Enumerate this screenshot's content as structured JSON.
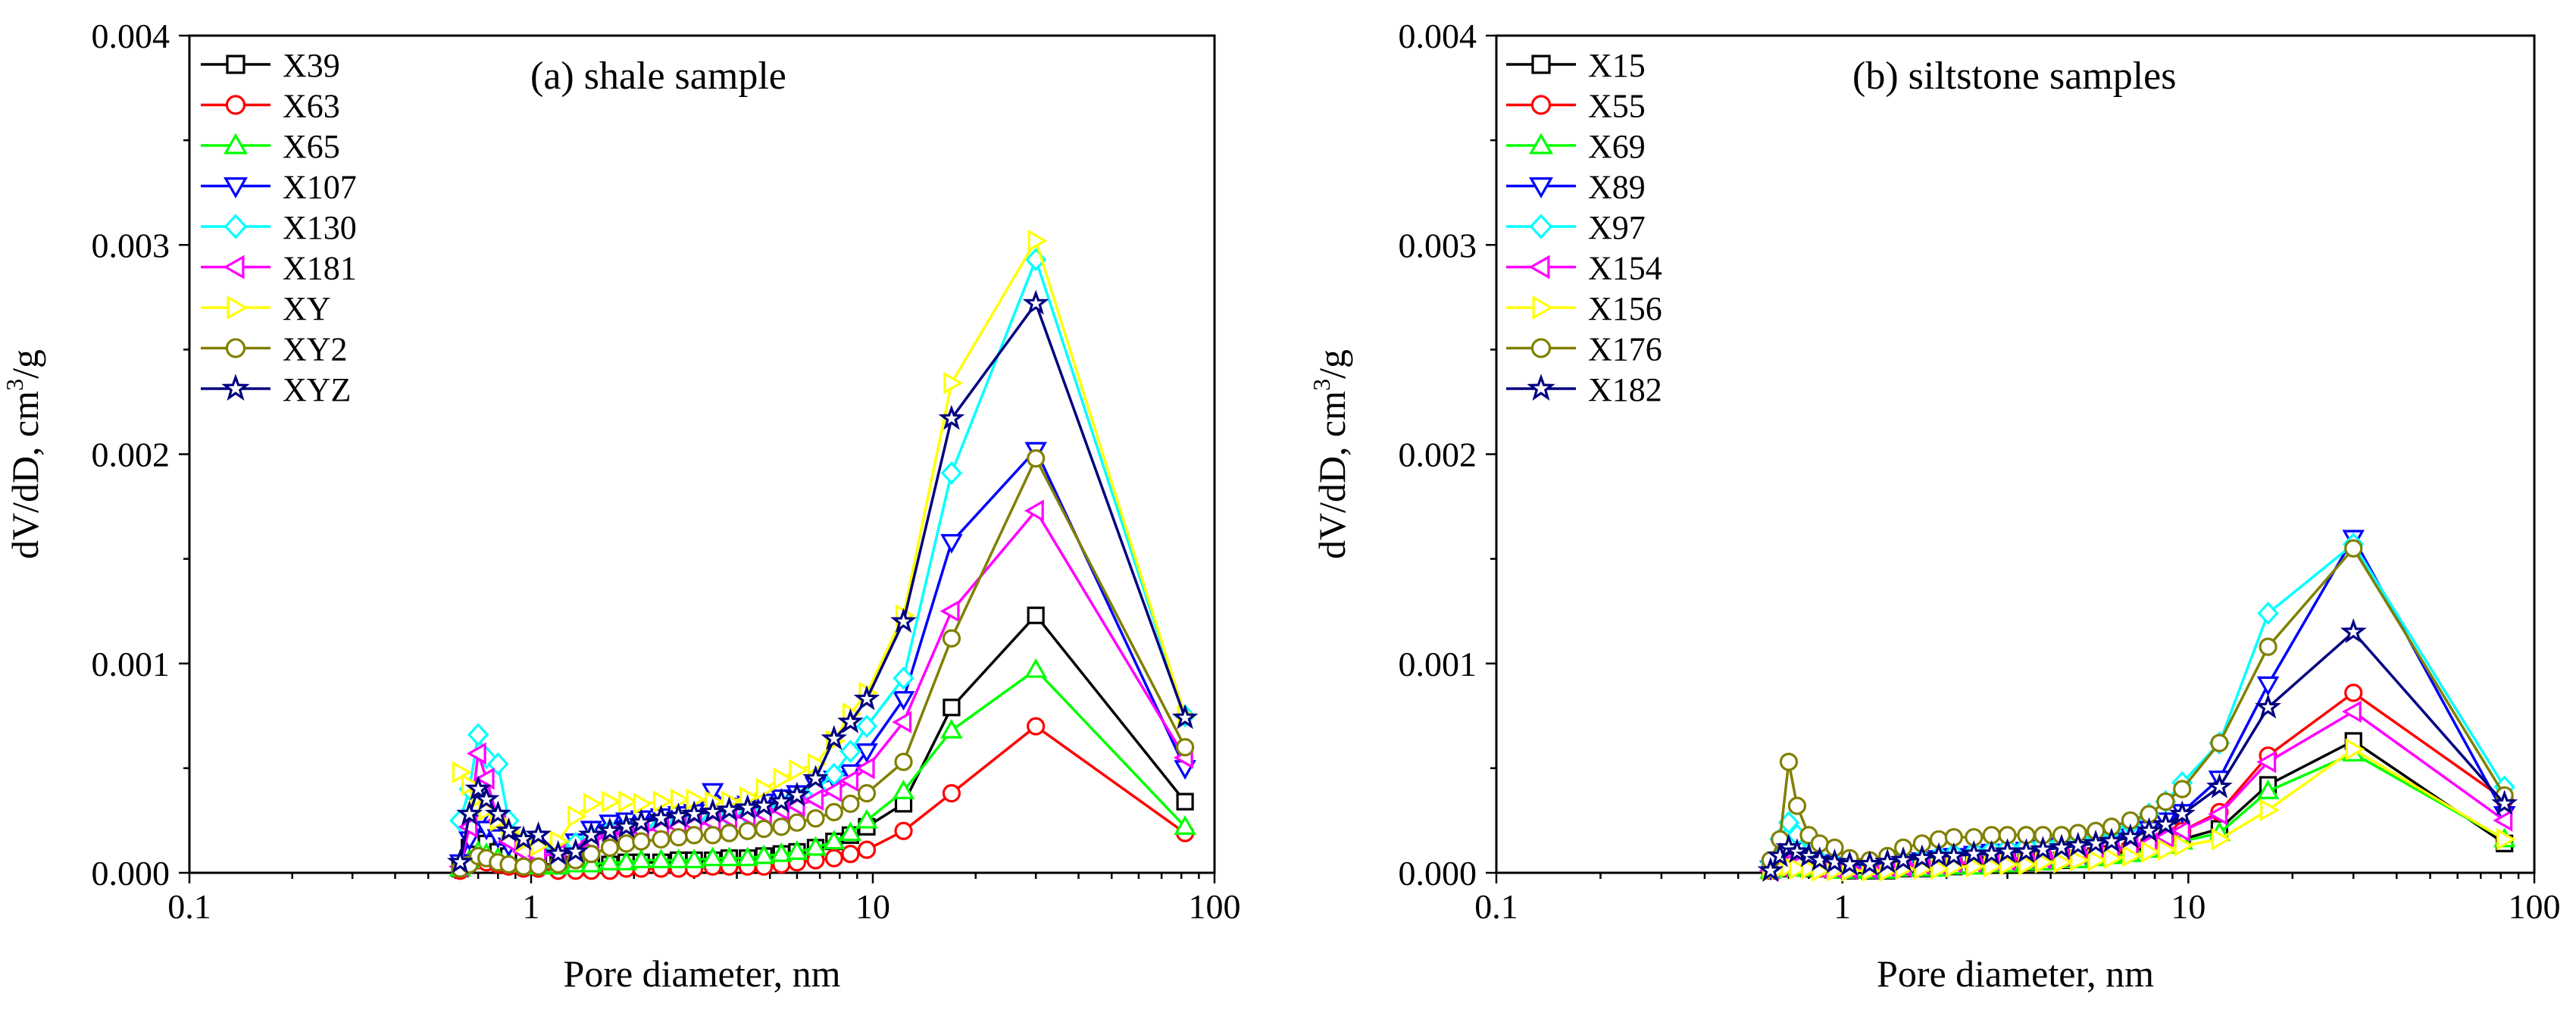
{
  "chart_data": [
    {
      "type": "line",
      "panel": "a",
      "title": "(a) shale sample",
      "xlabel": "Pore diameter, nm",
      "ylabel_main": "dV/dD, cm",
      "ylabel_sup": "3",
      "ylabel_end": "/g",
      "xscale": "log",
      "xlim": [
        0.1,
        100
      ],
      "ylim": [
        0,
        0.004
      ],
      "x_ticks": [
        0.1,
        1,
        10,
        100
      ],
      "x_tick_labels": [
        "0.1",
        "1",
        "10",
        "100"
      ],
      "y_ticks": [
        0,
        0.001,
        0.002,
        0.003,
        0.004
      ],
      "y_tick_labels": [
        "0.000",
        "0.001",
        "0.002",
        "0.003",
        "0.004"
      ],
      "legend_position": "top-left",
      "x": [
        0.62,
        0.66,
        0.7,
        0.74,
        0.8,
        0.86,
        0.95,
        1.05,
        1.2,
        1.35,
        1.5,
        1.7,
        1.9,
        2.1,
        2.4,
        2.7,
        3.0,
        3.4,
        3.8,
        4.3,
        4.8,
        5.4,
        6.0,
        6.8,
        7.7,
        8.6,
        9.6,
        12.3,
        17.0,
        30.0,
        82.0
      ],
      "series": [
        {
          "name": "X39",
          "color": "#000000",
          "marker": "square",
          "values": [
            2e-05,
            0.00012,
            0.00016,
            0.00014,
            0.0001,
            8e-05,
            6e-05,
            4e-05,
            4e-05,
            4e-05,
            4e-05,
            4e-05,
            5e-05,
            5e-05,
            5e-05,
            6e-05,
            6e-05,
            6e-05,
            7e-05,
            7e-05,
            8e-05,
            9e-05,
            0.0001,
            0.00012,
            0.00015,
            0.00018,
            0.00022,
            0.00033,
            0.00079,
            0.00123,
            0.00034
          ]
        },
        {
          "name": "X63",
          "color": "#ff0000",
          "marker": "circle",
          "values": [
            1e-05,
            4e-05,
            6e-05,
            5e-05,
            4e-05,
            3e-05,
            2e-05,
            2e-05,
            1e-05,
            1e-05,
            1e-05,
            1e-05,
            2e-05,
            2e-05,
            2e-05,
            2e-05,
            2e-05,
            3e-05,
            3e-05,
            3e-05,
            3e-05,
            4e-05,
            5e-05,
            6e-05,
            7e-05,
            9e-05,
            0.00011,
            0.0002,
            0.00038,
            0.0007,
            0.00019
          ]
        },
        {
          "name": "X65",
          "color": "#00ff00",
          "marker": "triangle-up",
          "values": [
            2e-05,
            6e-05,
            0.0001,
            9e-05,
            7e-05,
            5e-05,
            4e-05,
            3e-05,
            3e-05,
            4e-05,
            4e-05,
            5e-05,
            5e-05,
            6e-05,
            6e-05,
            6e-05,
            6e-05,
            7e-05,
            7e-05,
            7e-05,
            8e-05,
            9e-05,
            0.0001,
            0.00012,
            0.00015,
            0.00019,
            0.00025,
            0.00039,
            0.00068,
            0.00097,
            0.00022
          ]
        },
        {
          "name": "X107",
          "color": "#0000ff",
          "marker": "triangle-down",
          "values": [
            5e-05,
            0.00016,
            0.00024,
            0.00021,
            0.00017,
            0.00013,
            0.00011,
            0.0001,
            0.0001,
            0.00015,
            0.00021,
            0.00024,
            0.00025,
            0.00026,
            0.00027,
            0.00028,
            0.00029,
            0.00039,
            0.00032,
            0.00033,
            0.00034,
            0.00036,
            0.00038,
            0.00042,
            0.00045,
            0.00048,
            0.00058,
            0.00083,
            0.00158,
            0.00202,
            0.0005
          ]
        },
        {
          "name": "X130",
          "color": "#00ffff",
          "marker": "diamond",
          "values": [
            0.00025,
            0.0004,
            0.00066,
            0.00055,
            0.00052,
            0.00025,
            0.00015,
            0.00012,
            0.00012,
            0.00014,
            0.00017,
            0.0002,
            0.00021,
            0.00022,
            0.00023,
            0.00024,
            0.00025,
            0.00026,
            0.00027,
            0.00028,
            0.0003,
            0.00033,
            0.00036,
            0.0004,
            0.00047,
            0.00058,
            0.0007,
            0.00093,
            0.00191,
            0.00293,
            0.00075
          ]
        },
        {
          "name": "X181",
          "color": "#ff00ff",
          "marker": "triangle-left",
          "values": [
            3e-05,
            0.00022,
            0.00057,
            0.00045,
            0.00025,
            0.00015,
            0.0001,
            8e-05,
            9e-05,
            0.0001,
            0.00015,
            0.00018,
            0.00019,
            0.0002,
            0.00021,
            0.00022,
            0.00023,
            0.00024,
            0.00026,
            0.00027,
            0.00028,
            0.0003,
            0.00032,
            0.00035,
            0.00039,
            0.00044,
            0.0005,
            0.00072,
            0.00125,
            0.00173,
            0.00055
          ]
        },
        {
          "name": "XY",
          "color": "#ffff00",
          "marker": "triangle-right",
          "values": [
            0.00048,
            0.00042,
            0.00036,
            0.0003,
            0.00025,
            0.0002,
            0.00015,
            0.00013,
            0.00015,
            0.00027,
            0.00033,
            0.00034,
            0.00034,
            0.00033,
            0.00034,
            0.00035,
            0.00035,
            0.00034,
            0.00034,
            0.00036,
            0.0004,
            0.00045,
            0.00049,
            0.00052,
            0.00063,
            0.00076,
            0.00086,
            0.00123,
            0.00234,
            0.00302,
            0.00075
          ]
        },
        {
          "name": "XY2",
          "color": "#808000",
          "marker": "circle-olive",
          "values": [
            2e-05,
            4e-05,
            8e-05,
            7e-05,
            5e-05,
            4e-05,
            3e-05,
            3e-05,
            4e-05,
            6e-05,
            9e-05,
            0.00012,
            0.00014,
            0.00015,
            0.00016,
            0.00017,
            0.00018,
            0.00018,
            0.00019,
            0.0002,
            0.00021,
            0.00022,
            0.00024,
            0.00026,
            0.00029,
            0.00033,
            0.00038,
            0.00053,
            0.00112,
            0.00198,
            0.0006
          ]
        },
        {
          "name": "XYZ",
          "color": "#000080",
          "marker": "star",
          "values": [
            5e-05,
            0.00028,
            0.0004,
            0.00035,
            0.00028,
            0.0002,
            0.00016,
            0.00018,
            9e-05,
            0.0001,
            0.00018,
            0.0002,
            0.00022,
            0.00024,
            0.00026,
            0.00027,
            0.00028,
            0.00029,
            0.0003,
            0.00031,
            0.00032,
            0.00034,
            0.00037,
            0.00045,
            0.00064,
            0.00072,
            0.00083,
            0.0012,
            0.00217,
            0.00272,
            0.00074
          ]
        }
      ]
    },
    {
      "type": "line",
      "panel": "b",
      "title": "(b) siltstone samples",
      "xlabel": "Pore diameter, nm",
      "ylabel_main": "dV/dD, cm",
      "ylabel_sup": "3",
      "ylabel_end": "/g",
      "xscale": "log",
      "xlim": [
        0.1,
        100
      ],
      "ylim": [
        0,
        0.004
      ],
      "x_ticks": [
        0.1,
        1,
        10,
        100
      ],
      "x_tick_labels": [
        "0.1",
        "1",
        "10",
        "100"
      ],
      "y_ticks": [
        0,
        0.001,
        0.002,
        0.003,
        0.004
      ],
      "y_tick_labels": [
        "0.000",
        "0.001",
        "0.002",
        "0.003",
        "0.004"
      ],
      "legend_position": "top-left",
      "x": [
        0.62,
        0.66,
        0.7,
        0.74,
        0.8,
        0.86,
        0.95,
        1.05,
        1.2,
        1.35,
        1.5,
        1.7,
        1.9,
        2.1,
        2.4,
        2.7,
        3.0,
        3.4,
        3.8,
        4.3,
        4.8,
        5.4,
        6.0,
        6.8,
        7.7,
        8.6,
        9.6,
        12.3,
        17.0,
        30.0,
        82.0
      ],
      "series": [
        {
          "name": "X15",
          "color": "#000000",
          "marker": "square",
          "values": [
            1e-05,
            2e-05,
            3e-05,
            3e-05,
            2e-05,
            2e-05,
            2e-05,
            1e-05,
            1e-05,
            1e-05,
            2e-05,
            2e-05,
            3e-05,
            3e-05,
            4e-05,
            4e-05,
            5e-05,
            5e-05,
            6e-05,
            6e-05,
            7e-05,
            8e-05,
            9e-05,
            0.0001,
            0.00012,
            0.00014,
            0.00016,
            0.00021,
            0.00042,
            0.00063,
            0.00014
          ]
        },
        {
          "name": "X55",
          "color": "#ff0000",
          "marker": "circle",
          "values": [
            1e-05,
            3e-05,
            5e-05,
            4e-05,
            3e-05,
            2e-05,
            2e-05,
            2e-05,
            2e-05,
            2e-05,
            3e-05,
            3e-05,
            4e-05,
            4e-05,
            5e-05,
            5e-05,
            6e-05,
            6e-05,
            7e-05,
            7e-05,
            8e-05,
            9e-05,
            0.0001,
            0.00012,
            0.00014,
            0.00017,
            0.0002,
            0.00029,
            0.00056,
            0.00086,
            0.00035
          ]
        },
        {
          "name": "X69",
          "color": "#00ff00",
          "marker": "triangle-up",
          "values": [
            1e-05,
            2e-05,
            3e-05,
            2e-05,
            2e-05,
            2e-05,
            1e-05,
            1e-05,
            1e-05,
            1e-05,
            2e-05,
            2e-05,
            2e-05,
            3e-05,
            3e-05,
            4e-05,
            4e-05,
            5e-05,
            5e-05,
            6e-05,
            6e-05,
            7e-05,
            8e-05,
            9e-05,
            0.00011,
            0.00013,
            0.00015,
            0.00019,
            0.00039,
            0.00057,
            0.00016
          ]
        },
        {
          "name": "X89",
          "color": "#0000ff",
          "marker": "triangle-down",
          "values": [
            2e-05,
            6e-05,
            9e-05,
            8e-05,
            7e-05,
            5e-05,
            4e-05,
            3e-05,
            3e-05,
            4e-05,
            5e-05,
            6e-05,
            7e-05,
            8e-05,
            9e-05,
            0.0001,
            0.0001,
            0.00011,
            0.00012,
            0.00013,
            0.00014,
            0.00015,
            0.00016,
            0.00018,
            0.00021,
            0.00025,
            0.00029,
            0.00045,
            0.0009,
            0.0016,
            0.00028
          ]
        },
        {
          "name": "X97",
          "color": "#00ffff",
          "marker": "diamond",
          "values": [
            5e-05,
            0.00016,
            0.00024,
            0.00018,
            0.0001,
            6e-05,
            5e-05,
            4e-05,
            4e-05,
            5e-05,
            6e-05,
            7e-05,
            8e-05,
            9e-05,
            0.0001,
            0.00011,
            0.00012,
            0.00013,
            0.00014,
            0.00015,
            0.00016,
            0.00018,
            0.0002,
            0.00023,
            0.00028,
            0.00034,
            0.00043,
            0.00062,
            0.00124,
            0.00157,
            0.00041
          ]
        },
        {
          "name": "X154",
          "color": "#ff00ff",
          "marker": "triangle-left",
          "values": [
            1e-05,
            3e-05,
            5e-05,
            4e-05,
            3e-05,
            2e-05,
            2e-05,
            2e-05,
            2e-05,
            3e-05,
            3e-05,
            4e-05,
            4e-05,
            5e-05,
            5e-05,
            6e-05,
            6e-05,
            7e-05,
            7e-05,
            8e-05,
            9e-05,
            0.0001,
            0.00011,
            0.00012,
            0.00014,
            0.00017,
            0.0002,
            0.00028,
            0.00053,
            0.00077,
            0.00025
          ]
        },
        {
          "name": "X156",
          "color": "#ffff00",
          "marker": "triangle-right",
          "values": [
            1e-05,
            2e-05,
            3e-05,
            2e-05,
            2e-05,
            1e-05,
            1e-05,
            1e-05,
            1e-05,
            1e-05,
            2e-05,
            2e-05,
            2e-05,
            3e-05,
            3e-05,
            3e-05,
            4e-05,
            4e-05,
            5e-05,
            5e-05,
            6e-05,
            6e-05,
            7e-05,
            8e-05,
            0.0001,
            0.00011,
            0.00013,
            0.00016,
            0.0003,
            0.00059,
            0.00016
          ]
        },
        {
          "name": "X176",
          "color": "#808000",
          "marker": "circle-olive",
          "values": [
            6e-05,
            0.00016,
            0.00053,
            0.00032,
            0.00018,
            0.00014,
            0.00012,
            7e-05,
            6e-05,
            8e-05,
            0.00012,
            0.00014,
            0.00016,
            0.00017,
            0.00017,
            0.00018,
            0.00018,
            0.00018,
            0.00018,
            0.00018,
            0.00019,
            0.0002,
            0.00022,
            0.00025,
            0.00028,
            0.00034,
            0.0004,
            0.00062,
            0.00108,
            0.00155,
            0.00037
          ]
        },
        {
          "name": "X182",
          "color": "#000080",
          "marker": "star",
          "values": [
            1e-05,
            8e-05,
            0.00012,
            0.0001,
            8e-05,
            6e-05,
            5e-05,
            4e-05,
            4e-05,
            5e-05,
            6e-05,
            7e-05,
            8e-05,
            8e-05,
            9e-05,
            9e-05,
            0.0001,
            0.0001,
            0.00011,
            0.00012,
            0.00013,
            0.00014,
            0.00015,
            0.00017,
            0.0002,
            0.00023,
            0.00028,
            0.00041,
            0.00079,
            0.00115,
            0.00033
          ]
        }
      ]
    }
  ]
}
